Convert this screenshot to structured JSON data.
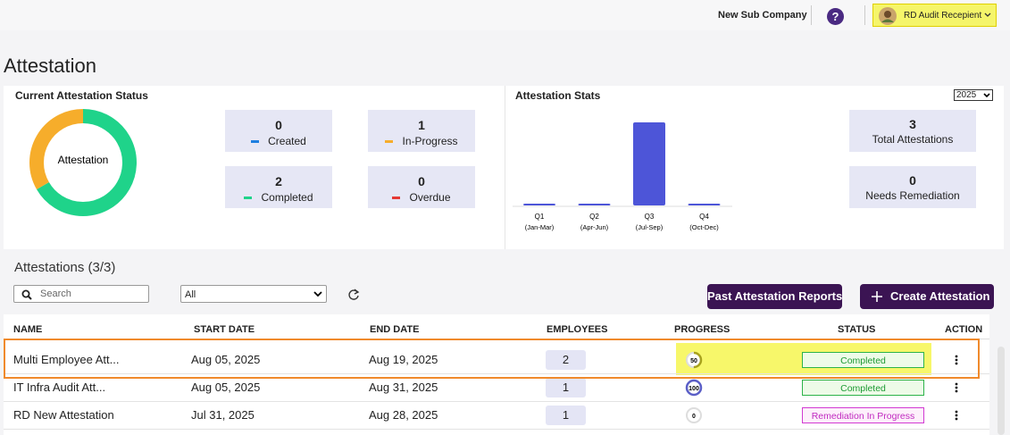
{
  "header": {
    "company": "New Sub Company",
    "help": "?",
    "user": "RD Audit Recepient"
  },
  "page_title": "Attestation",
  "status_panel": {
    "title": "Current Attestation Status",
    "chart": {
      "type": "donut",
      "center_label": "Attestation"
    },
    "cards": [
      {
        "value": 0,
        "label": "Created",
        "color": "#1f7fe0"
      },
      {
        "value": 1,
        "label": "In-Progress",
        "color": "#f6ad2b"
      },
      {
        "value": 2,
        "label": "Completed",
        "color": "#1fd38a"
      },
      {
        "value": 0,
        "label": "Overdue",
        "color": "#e53935"
      }
    ]
  },
  "stats_panel": {
    "title": "Attestation Stats",
    "year": "2025",
    "chart_data": {
      "type": "bar",
      "categories": [
        "Q1",
        "Q2",
        "Q3",
        "Q4"
      ],
      "periods": [
        "(Jan-Mar)",
        "(Apr-Jun)",
        "(Jul-Sep)",
        "(Oct-Dec)"
      ],
      "values": [
        0,
        0,
        3,
        0
      ],
      "color": "#4d55d8",
      "ylim": [
        0,
        3
      ]
    },
    "cards": [
      {
        "value": 3,
        "label": "Total Attestations"
      },
      {
        "value": 0,
        "label": "Needs Remediation"
      }
    ]
  },
  "list": {
    "title": "Attestations (3/3)",
    "search_placeholder": "Search",
    "filter": "All",
    "buttons": [
      "Past Attestation Reports",
      "Create Attestation"
    ],
    "columns": [
      "NAME",
      "START DATE",
      "END DATE",
      "EMPLOYEES",
      "PROGRESS",
      "STATUS",
      "ACTION"
    ],
    "rows": [
      {
        "name": "Multi Employee Att...",
        "start": "Aug 05, 2025",
        "end": "Aug 19, 2025",
        "employees": 2,
        "progress": 50,
        "status": "Completed"
      },
      {
        "name": "IT Infra Audit Att...",
        "start": "Aug 05, 2025",
        "end": "Aug 31, 2025",
        "employees": 1,
        "progress": 100,
        "status": "Completed"
      },
      {
        "name": "RD New Attestation",
        "start": "Jul 31, 2025",
        "end": "Aug 28, 2025",
        "employees": 1,
        "progress": 0,
        "status": "Remediation In Progress"
      }
    ]
  }
}
